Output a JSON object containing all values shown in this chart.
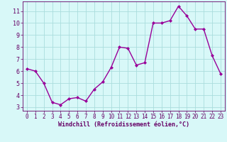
{
  "x": [
    0,
    1,
    2,
    3,
    4,
    5,
    6,
    7,
    8,
    9,
    10,
    11,
    12,
    13,
    14,
    15,
    16,
    17,
    18,
    19,
    20,
    21,
    22,
    23
  ],
  "y": [
    6.2,
    6.0,
    5.0,
    3.4,
    3.2,
    3.7,
    3.8,
    3.5,
    4.5,
    5.1,
    6.3,
    8.0,
    7.9,
    6.5,
    6.7,
    10.0,
    10.0,
    10.2,
    11.4,
    10.6,
    9.5,
    9.5,
    7.3,
    5.8
  ],
  "line_color": "#990099",
  "marker": "D",
  "marker_size": 2.0,
  "bg_color": "#d8f8f8",
  "grid_color": "#aadddd",
  "xlabel": "Windchill (Refroidissement éolien,°C)",
  "xlabel_color": "#660066",
  "tick_color": "#660066",
  "xlim": [
    -0.5,
    23.5
  ],
  "ylim": [
    2.7,
    11.8
  ],
  "yticks": [
    3,
    4,
    5,
    6,
    7,
    8,
    9,
    10,
    11
  ],
  "xticks": [
    0,
    1,
    2,
    3,
    4,
    5,
    6,
    7,
    8,
    9,
    10,
    11,
    12,
    13,
    14,
    15,
    16,
    17,
    18,
    19,
    20,
    21,
    22,
    23
  ],
  "line_width": 1.0,
  "tick_fontsize": 5.5,
  "xlabel_fontsize": 6.0
}
